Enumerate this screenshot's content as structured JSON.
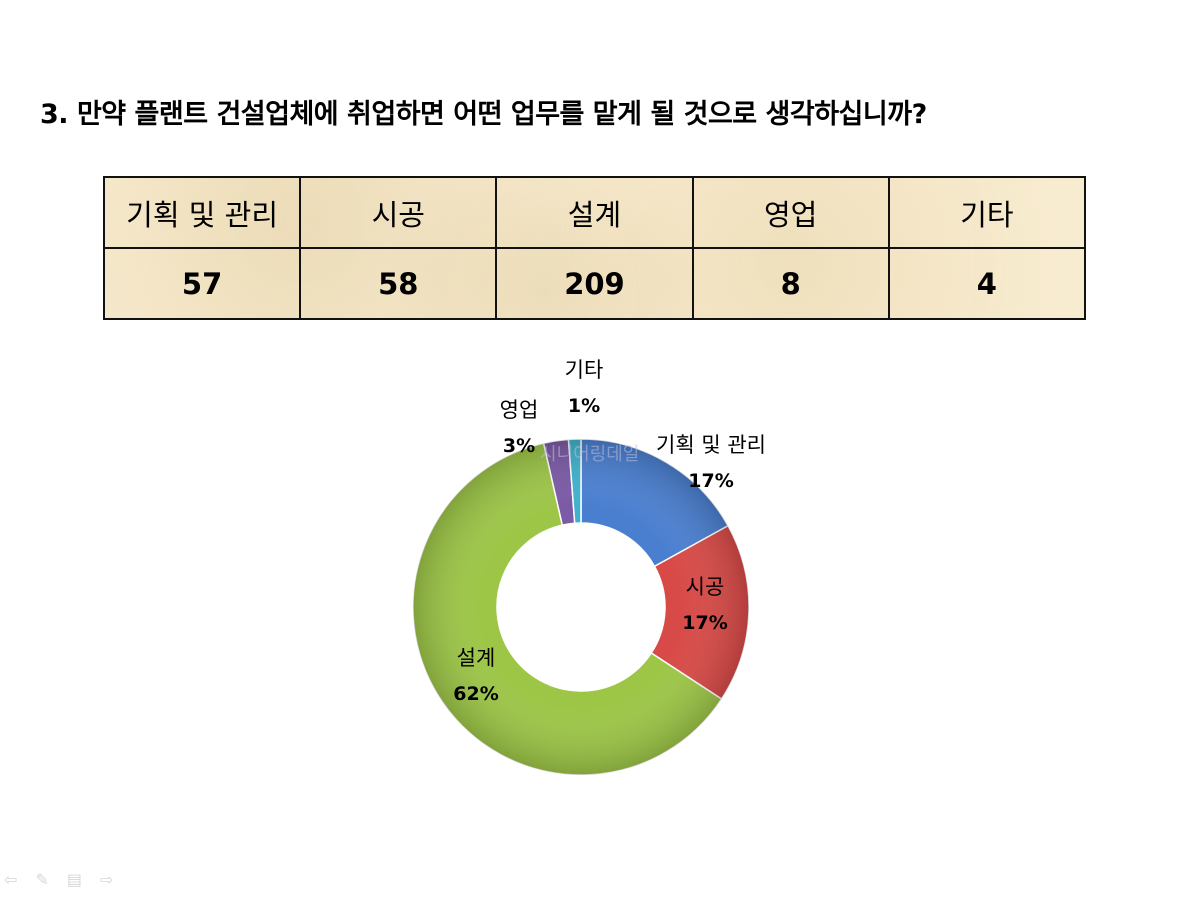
{
  "title": "3. 만약 플랜트 건설업체에 취업하면 어떤 업무를 맡게 될 것으로 생각하십니까?",
  "table": {
    "headers": [
      "기획 및 관리",
      "시공",
      "설계",
      "영업",
      "기타"
    ],
    "values": [
      "57",
      "58",
      "209",
      "8",
      "4"
    ]
  },
  "watermark": "시니어링데일",
  "nav_icons": [
    "back-arrow-icon",
    "pen-icon",
    "menu-icon",
    "forward-arrow-icon"
  ],
  "chart_data": {
    "type": "pie",
    "categories": [
      "기획 및 관리",
      "시공",
      "설계",
      "영업",
      "기타"
    ],
    "values": [
      57,
      58,
      209,
      8,
      4
    ],
    "percent_labels": [
      "17%",
      "17%",
      "62%",
      "3%",
      "1%"
    ],
    "colors": [
      "#4a7fd0",
      "#d84a47",
      "#9dc647",
      "#7b5aa6",
      "#3fb2cc"
    ],
    "donut": true
  }
}
